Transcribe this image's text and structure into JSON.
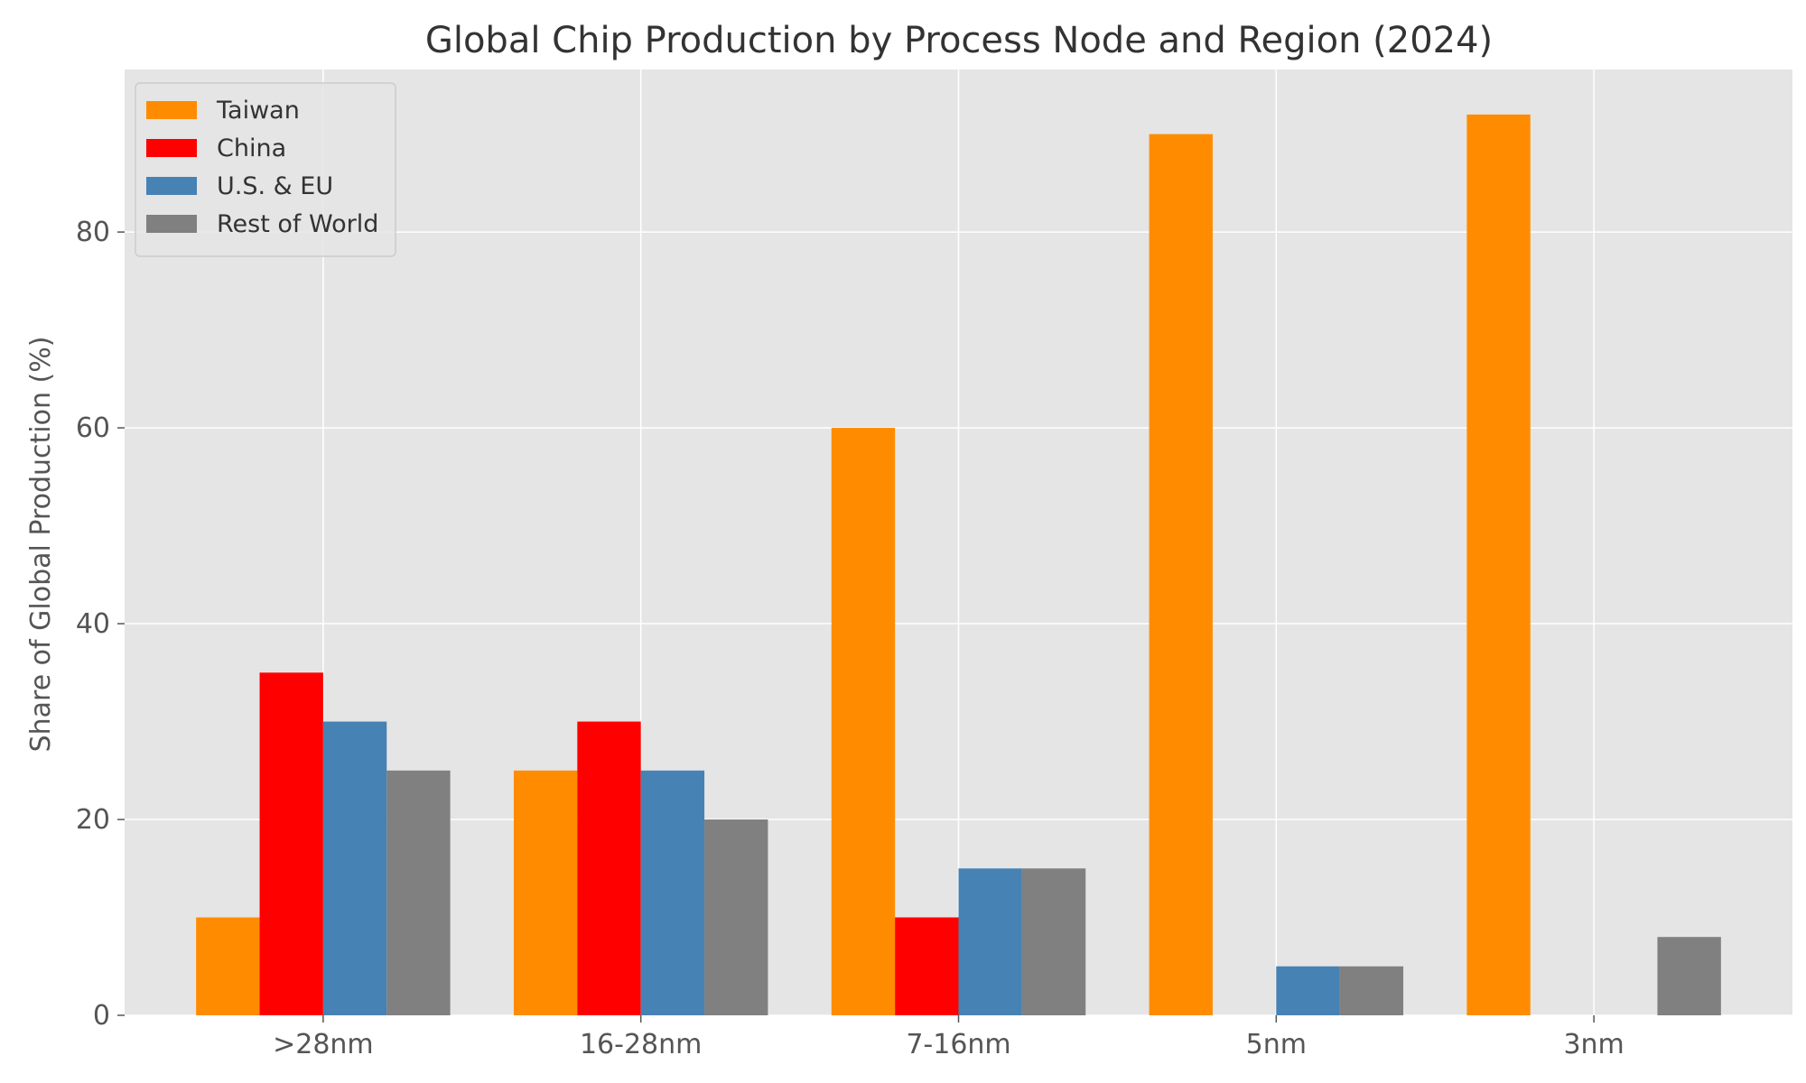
{
  "chart_data": {
    "type": "bar",
    "title": "Global Chip Production by Process Node and Region (2024)",
    "xlabel": "",
    "ylabel": "Share of Global Production (%)",
    "categories": [
      ">28nm",
      "16-28nm",
      "7-16nm",
      "5nm",
      "3nm"
    ],
    "series": [
      {
        "name": "Taiwan",
        "color": "#ff8c00",
        "values": [
          10,
          25,
          60,
          90,
          92
        ]
      },
      {
        "name": "China",
        "color": "#ff0000",
        "values": [
          35,
          30,
          10,
          0,
          0
        ]
      },
      {
        "name": "U.S. & EU",
        "color": "#4682b4",
        "values": [
          30,
          25,
          15,
          5,
          0
        ]
      },
      {
        "name": "Rest of World",
        "color": "#808080",
        "values": [
          25,
          20,
          15,
          5,
          8
        ]
      }
    ],
    "ylim": [
      0,
      96.6
    ],
    "yticks": [
      0,
      20,
      40,
      60,
      80
    ],
    "grid": true,
    "legend_position": "top-left",
    "background": "#e5e5e5",
    "grid_color": "#ffffff"
  }
}
